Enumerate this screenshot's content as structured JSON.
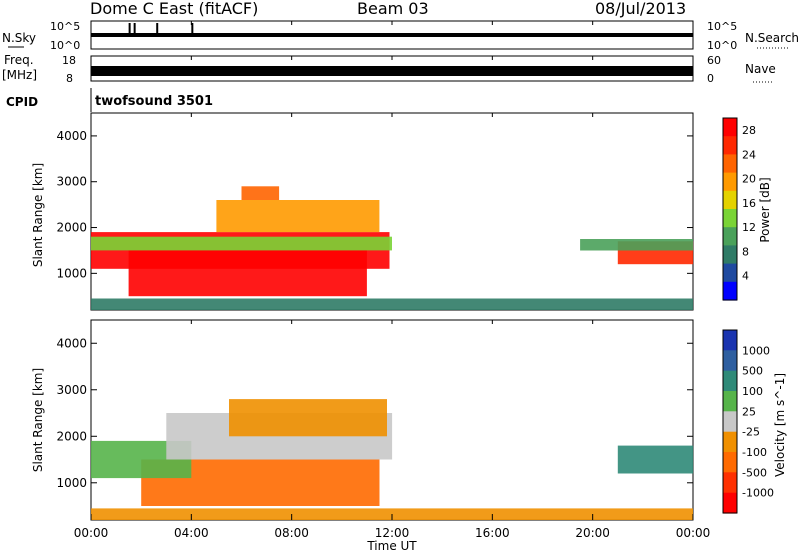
{
  "header": {
    "station": "Dome C East (fitACF)",
    "beam": "Beam 03",
    "date": "08/Jul/2013"
  },
  "noise_panel": {
    "left_label": "N.Sky",
    "right_label": "N.Search",
    "left_ticks": [
      "10^5",
      "10^0"
    ],
    "right_ticks": [
      "10^5",
      "10^0"
    ]
  },
  "freq_panel": {
    "left_label_1": "Freq.",
    "left_label_2": "[MHz]",
    "right_label": "Nave",
    "left_ticks": [
      "18",
      "8"
    ],
    "right_ticks": [
      "60",
      "0"
    ]
  },
  "cpid": {
    "label": "CPID",
    "text": "twofsound 3501"
  },
  "x_axis": {
    "title": "Time UT",
    "ticks": [
      "00:00",
      "04:00",
      "08:00",
      "12:00",
      "16:00",
      "20:00",
      "00:00"
    ]
  },
  "colors": {
    "power_scale": [
      "#0000ff",
      "#1f4aa0",
      "#2f7b66",
      "#4aa15a",
      "#7ad436",
      "#e4d200",
      "#ff9a00",
      "#ff6400",
      "#ff2800",
      "#ff0000"
    ],
    "velocity_scale": [
      "#1a34b0",
      "#2e5fa0",
      "#2f8a78",
      "#56b44a",
      "#c8c8c8",
      "#f09000",
      "#ff6a00",
      "#ff3000",
      "#ff0000"
    ]
  },
  "chart_data": [
    {
      "type": "heatmap",
      "title": "",
      "variable": "Power",
      "xlabel": "Time UT",
      "ylabel": "Slant Range [km]",
      "xlim": [
        0,
        24
      ],
      "ylim": [
        200,
        4500
      ],
      "y_ticks": [
        1000,
        2000,
        3000,
        4000
      ],
      "colorbar": {
        "label": "Power [dB]",
        "ticks": [
          "4",
          "8",
          "12",
          "16",
          "20",
          "24",
          "28"
        ],
        "range": [
          0,
          30
        ]
      },
      "regions": [
        {
          "t0": 0.0,
          "t1": 11.9,
          "r0": 1100,
          "r1": 1900,
          "level": 27
        },
        {
          "t0": 1.5,
          "t1": 11.0,
          "r0": 500,
          "r1": 1500,
          "level": 29
        },
        {
          "t0": 0.0,
          "t1": 12.0,
          "r0": 1500,
          "r1": 1800,
          "level": 14
        },
        {
          "t0": 5.0,
          "t1": 11.5,
          "r0": 1900,
          "r1": 2600,
          "level": 18
        },
        {
          "t0": 6.0,
          "t1": 7.5,
          "r0": 2600,
          "r1": 2900,
          "level": 22
        },
        {
          "t0": 21.0,
          "t1": 24.0,
          "r0": 1200,
          "r1": 1700,
          "level": 24
        },
        {
          "t0": 19.5,
          "t1": 24.0,
          "r0": 1500,
          "r1": 1750,
          "level": 9
        },
        {
          "t0": 0.0,
          "t1": 24.0,
          "r0": 200,
          "r1": 450,
          "level": 7
        }
      ]
    },
    {
      "type": "heatmap",
      "title": "",
      "variable": "Velocity",
      "xlabel": "Time UT",
      "ylabel": "Slant Range [km]",
      "xlim": [
        0,
        24
      ],
      "ylim": [
        200,
        4500
      ],
      "y_ticks": [
        1000,
        2000,
        3000,
        4000
      ],
      "colorbar": {
        "label": "Velocity [m s^-1]",
        "ticks": [
          "1000",
          "500",
          "100",
          "25",
          "-25",
          "-100",
          "-500",
          "-1000"
        ],
        "range": [
          -1000,
          1000
        ]
      },
      "regions": [
        {
          "t0": 2.0,
          "t1": 11.5,
          "r0": 500,
          "r1": 1500,
          "level": -120
        },
        {
          "t0": 0.0,
          "t1": 4.0,
          "r0": 1100,
          "r1": 1900,
          "level": 60
        },
        {
          "t0": 3.0,
          "t1": 12.0,
          "r0": 1500,
          "r1": 2500,
          "level": 0
        },
        {
          "t0": 5.5,
          "t1": 11.8,
          "r0": 2000,
          "r1": 2800,
          "level": -60
        },
        {
          "t0": 21.0,
          "t1": 24.0,
          "r0": 1200,
          "r1": 1800,
          "level": 200
        },
        {
          "t0": 0.0,
          "t1": 24.0,
          "r0": 200,
          "r1": 450,
          "level": -60
        }
      ]
    }
  ]
}
